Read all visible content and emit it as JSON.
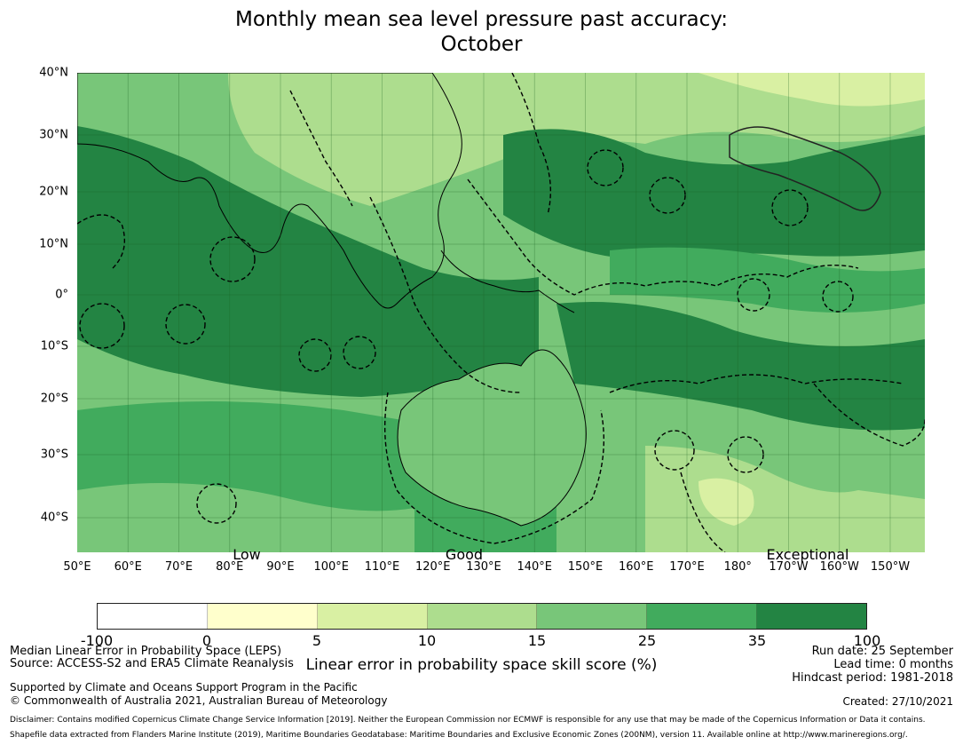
{
  "title_line1": "Monthly mean sea level pressure past accuracy:",
  "title_line2": "October",
  "map": {
    "lat_labels": [
      "40°N",
      "30°N",
      "20°N",
      "10°N",
      "0°",
      "10°S",
      "20°S",
      "30°S",
      "40°S"
    ],
    "lon_labels": [
      "50°E",
      "60°E",
      "70°E",
      "80°E",
      "90°E",
      "100°E",
      "110°E",
      "120°E",
      "130°E",
      "140°E",
      "150°E",
      "160°E",
      "170°E",
      "180°",
      "170°W",
      "160°W",
      "150°W"
    ],
    "skill_labels": [
      "Low",
      "Good",
      "Exceptional"
    ],
    "land_color": "#ffffff",
    "coast_color": "#000000",
    "boundary_style": "dashed"
  },
  "colorbar": {
    "ticks": [
      "-100",
      "0",
      "5",
      "10",
      "15",
      "25",
      "35",
      "100"
    ],
    "colors": [
      "#ffffff",
      "#ffffcc",
      "#d9f0a3",
      "#addd8e",
      "#78c679",
      "#41ab5d",
      "#238443"
    ],
    "label": "Linear error in probability space skill score (%)"
  },
  "footer": {
    "left1": "Median Linear Error in Probability Space (LEPS)",
    "left2": "Source: ACCESS-S2 and ERA5 Climate Reanalysis",
    "left3": "Supported by Climate and Oceans Support Program in the Pacific",
    "left4": "© Commonwealth of Australia 2021, Australian Bureau of Meteorology",
    "right1": "Run date: 25 September",
    "right2": "Lead time: 0 months",
    "right3": "Hindcast period: 1981-2018",
    "right4": "Created: 27/10/2021",
    "disclaimer1": "Disclaimer: Contains modified Copernicus Climate Change Service Information [2019]. Neither the European Commission nor ECMWF is responsible for any use that may be made of the Copernicus Information or Data it contains.",
    "disclaimer2": "Shapefile data extracted from Flanders Marine Institute (2019), Maritime Boundaries Geodatabase: Maritime Boundaries and Exclusive Economic Zones (200NM), version 11. Available online at http://www.marineregions.org/."
  }
}
